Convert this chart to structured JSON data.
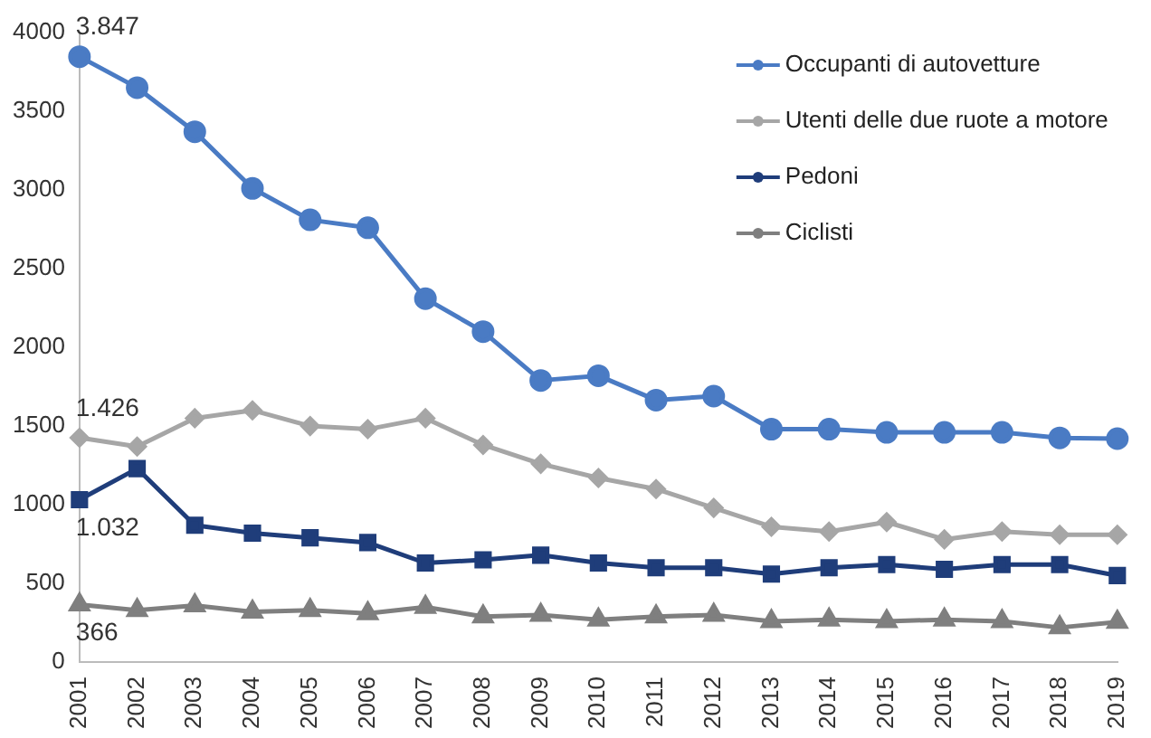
{
  "chart_data": {
    "type": "line",
    "categories": [
      "2001",
      "2002",
      "2003",
      "2004",
      "2005",
      "2006",
      "2007",
      "2008",
      "2009",
      "2010",
      "2011",
      "2012",
      "2013",
      "2014",
      "2015",
      "2016",
      "2017",
      "2018",
      "2019"
    ],
    "series": [
      {
        "name": "Occupanti di autovetture",
        "color": "#4a7bc4",
        "marker": "circle",
        "values": [
          3847,
          3650,
          3370,
          3010,
          2810,
          2760,
          2310,
          2100,
          1790,
          1820,
          1665,
          1690,
          1480,
          1480,
          1460,
          1460,
          1460,
          1425,
          1420
        ]
      },
      {
        "name": "Utenti delle due ruote a motore",
        "color": "#a6a6a6",
        "marker": "diamond",
        "values": [
          1426,
          1370,
          1550,
          1600,
          1500,
          1480,
          1550,
          1380,
          1260,
          1170,
          1100,
          980,
          860,
          830,
          890,
          780,
          830,
          810,
          810
        ]
      },
      {
        "name": "Pedoni",
        "color": "#1f3d7a",
        "marker": "square",
        "values": [
          1032,
          1230,
          870,
          820,
          790,
          760,
          630,
          650,
          680,
          630,
          600,
          600,
          560,
          600,
          620,
          590,
          620,
          620,
          550
        ]
      },
      {
        "name": "Ciclisti",
        "color": "#7f7f7f",
        "marker": "triangle",
        "values": [
          366,
          330,
          360,
          320,
          330,
          310,
          350,
          290,
          300,
          270,
          290,
          300,
          260,
          270,
          260,
          270,
          260,
          220,
          255
        ]
      }
    ],
    "ylim": [
      0,
      4000
    ],
    "yticks": [
      0,
      500,
      1000,
      1500,
      2000,
      2500,
      3000,
      3500,
      4000
    ],
    "grid": false,
    "legend": "top right",
    "annotations": [
      {
        "text": "3.847",
        "x": "2001",
        "y": 3847
      },
      {
        "text": "1.426",
        "x": "2001",
        "y": 1426
      },
      {
        "text": "1.032",
        "x": "2001",
        "y": 1032
      },
      {
        "text": "366",
        "x": "2001",
        "y": 366
      }
    ]
  }
}
